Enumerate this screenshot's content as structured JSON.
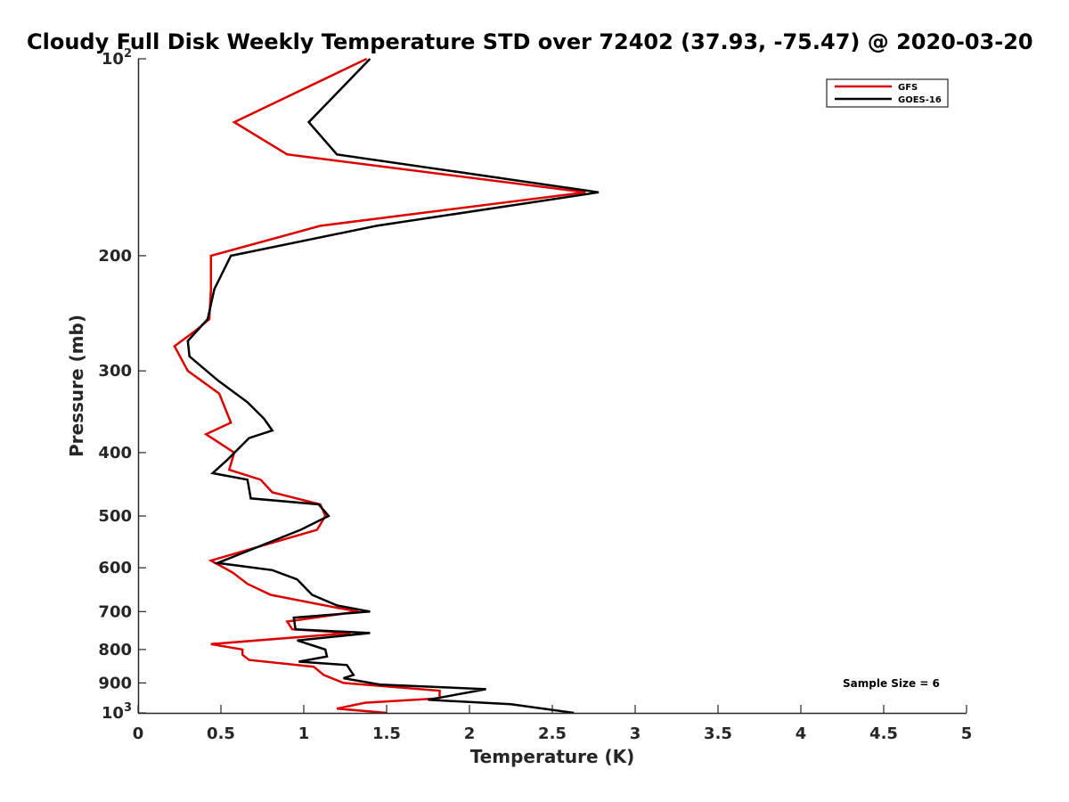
{
  "chart_data": {
    "type": "line",
    "title": "Cloudy Full Disk Weekly Temperature STD over 72402 (37.93, -75.47) @ 2020-03-20",
    "xlabel": "Temperature (K)",
    "ylabel": "Pressure (mb)",
    "xlim": [
      0,
      5
    ],
    "ylim": [
      100,
      1000
    ],
    "y_scale": "log",
    "y_reversed": true,
    "x_ticks": [
      0,
      0.5,
      1,
      1.5,
      2,
      2.5,
      3,
      3.5,
      4,
      4.5,
      5
    ],
    "x_tick_labels": [
      "0",
      "0.5",
      "1",
      "1.5",
      "2",
      "2.5",
      "3",
      "3.5",
      "4",
      "4.5",
      "5"
    ],
    "y_ticks": [
      {
        "value": 100,
        "base": "10",
        "exp": "2"
      },
      {
        "value": 200,
        "label": "200"
      },
      {
        "value": 300,
        "label": "300"
      },
      {
        "value": 400,
        "label": "400"
      },
      {
        "value": 500,
        "label": "500"
      },
      {
        "value": 600,
        "label": "600"
      },
      {
        "value": 700,
        "label": "700"
      },
      {
        "value": 800,
        "label": "800"
      },
      {
        "value": 900,
        "label": "900"
      },
      {
        "value": 1000,
        "base": "10",
        "exp": "3"
      }
    ],
    "grid": false,
    "legend_position": "top-right",
    "series": [
      {
        "name": "GFS",
        "color": "#dd0000",
        "points": [
          {
            "x": 1.38,
            "y": 100
          },
          {
            "x": 0.58,
            "y": 125
          },
          {
            "x": 0.9,
            "y": 140
          },
          {
            "x": 2.7,
            "y": 160
          },
          {
            "x": 1.1,
            "y": 180
          },
          {
            "x": 0.44,
            "y": 200
          },
          {
            "x": 0.44,
            "y": 225
          },
          {
            "x": 0.43,
            "y": 250
          },
          {
            "x": 0.35,
            "y": 260
          },
          {
            "x": 0.22,
            "y": 275
          },
          {
            "x": 0.3,
            "y": 300
          },
          {
            "x": 0.49,
            "y": 325
          },
          {
            "x": 0.56,
            "y": 360
          },
          {
            "x": 0.41,
            "y": 375
          },
          {
            "x": 0.58,
            "y": 400
          },
          {
            "x": 0.55,
            "y": 425
          },
          {
            "x": 0.74,
            "y": 440
          },
          {
            "x": 0.81,
            "y": 460
          },
          {
            "x": 1.1,
            "y": 480
          },
          {
            "x": 1.13,
            "y": 500
          },
          {
            "x": 1.08,
            "y": 525
          },
          {
            "x": 0.75,
            "y": 555
          },
          {
            "x": 0.44,
            "y": 585
          },
          {
            "x": 0.57,
            "y": 610
          },
          {
            "x": 0.66,
            "y": 635
          },
          {
            "x": 0.8,
            "y": 660
          },
          {
            "x": 1.19,
            "y": 690
          },
          {
            "x": 1.33,
            "y": 700
          },
          {
            "x": 0.9,
            "y": 725
          },
          {
            "x": 0.93,
            "y": 745
          },
          {
            "x": 1.28,
            "y": 755
          },
          {
            "x": 0.44,
            "y": 785
          },
          {
            "x": 0.63,
            "y": 800
          },
          {
            "x": 0.63,
            "y": 815
          },
          {
            "x": 0.67,
            "y": 830
          },
          {
            "x": 1.06,
            "y": 850
          },
          {
            "x": 1.12,
            "y": 875
          },
          {
            "x": 1.24,
            "y": 900
          },
          {
            "x": 1.82,
            "y": 925
          },
          {
            "x": 1.82,
            "y": 950
          },
          {
            "x": 1.37,
            "y": 965
          },
          {
            "x": 1.2,
            "y": 985
          },
          {
            "x": 1.5,
            "y": 1000
          }
        ]
      },
      {
        "name": "GOES-16",
        "color": "#000000",
        "points": [
          {
            "x": 1.4,
            "y": 100
          },
          {
            "x": 1.03,
            "y": 125
          },
          {
            "x": 1.2,
            "y": 140
          },
          {
            "x": 2.78,
            "y": 160
          },
          {
            "x": 1.44,
            "y": 180
          },
          {
            "x": 0.56,
            "y": 200
          },
          {
            "x": 0.46,
            "y": 225
          },
          {
            "x": 0.42,
            "y": 250
          },
          {
            "x": 0.3,
            "y": 270
          },
          {
            "x": 0.31,
            "y": 285
          },
          {
            "x": 0.48,
            "y": 310
          },
          {
            "x": 0.66,
            "y": 335
          },
          {
            "x": 0.76,
            "y": 355
          },
          {
            "x": 0.81,
            "y": 370
          },
          {
            "x": 0.67,
            "y": 380
          },
          {
            "x": 0.54,
            "y": 410
          },
          {
            "x": 0.45,
            "y": 430
          },
          {
            "x": 0.66,
            "y": 440
          },
          {
            "x": 0.68,
            "y": 470
          },
          {
            "x": 1.09,
            "y": 480
          },
          {
            "x": 1.15,
            "y": 500
          },
          {
            "x": 0.98,
            "y": 525
          },
          {
            "x": 0.48,
            "y": 590
          },
          {
            "x": 0.81,
            "y": 605
          },
          {
            "x": 0.96,
            "y": 625
          },
          {
            "x": 1.05,
            "y": 660
          },
          {
            "x": 1.2,
            "y": 685
          },
          {
            "x": 1.4,
            "y": 700
          },
          {
            "x": 0.94,
            "y": 715
          },
          {
            "x": 0.95,
            "y": 745
          },
          {
            "x": 1.4,
            "y": 755
          },
          {
            "x": 0.96,
            "y": 775
          },
          {
            "x": 1.13,
            "y": 800
          },
          {
            "x": 1.14,
            "y": 820
          },
          {
            "x": 0.97,
            "y": 835
          },
          {
            "x": 1.26,
            "y": 845
          },
          {
            "x": 1.3,
            "y": 875
          },
          {
            "x": 1.24,
            "y": 885
          },
          {
            "x": 1.46,
            "y": 905
          },
          {
            "x": 2.1,
            "y": 920
          },
          {
            "x": 1.75,
            "y": 955
          },
          {
            "x": 2.25,
            "y": 970
          },
          {
            "x": 2.63,
            "y": 1000
          }
        ]
      }
    ],
    "annotations": [
      {
        "text": "Sample Size = 6",
        "position": "bottom-right"
      }
    ]
  }
}
